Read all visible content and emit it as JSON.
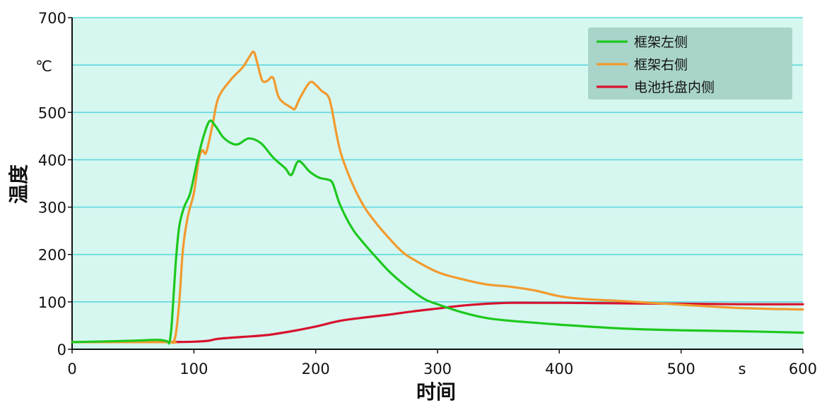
{
  "chart_data": {
    "type": "line",
    "xlabel": "时间",
    "ylabel": "温度",
    "x_unit": "s",
    "y_unit": "℃",
    "xlim": [
      0,
      600
    ],
    "ylim": [
      0,
      700
    ],
    "x_ticks": [
      0,
      100,
      200,
      300,
      400,
      500,
      600
    ],
    "y_ticks": [
      0,
      100,
      200,
      300,
      400,
      500,
      700
    ],
    "grid": true,
    "background": "#d5f7f0",
    "grid_color": "#5fd8dc",
    "legend_position": "top-right",
    "series": [
      {
        "name": "框架左侧",
        "color": "#1ec81e",
        "points": [
          [
            0,
            15
          ],
          [
            50,
            18
          ],
          [
            70,
            20
          ],
          [
            78,
            17
          ],
          [
            80,
            15
          ],
          [
            82,
            60
          ],
          [
            85,
            180
          ],
          [
            88,
            260
          ],
          [
            92,
            300
          ],
          [
            97,
            330
          ],
          [
            103,
            400
          ],
          [
            108,
            450
          ],
          [
            113,
            482
          ],
          [
            118,
            470
          ],
          [
            125,
            445
          ],
          [
            135,
            432
          ],
          [
            145,
            445
          ],
          [
            155,
            435
          ],
          [
            165,
            405
          ],
          [
            175,
            382
          ],
          [
            180,
            368
          ],
          [
            186,
            397
          ],
          [
            195,
            375
          ],
          [
            203,
            362
          ],
          [
            210,
            358
          ],
          [
            214,
            350
          ],
          [
            220,
            305
          ],
          [
            230,
            255
          ],
          [
            240,
            222
          ],
          [
            250,
            193
          ],
          [
            260,
            165
          ],
          [
            270,
            142
          ],
          [
            280,
            122
          ],
          [
            290,
            105
          ],
          [
            300,
            95
          ],
          [
            320,
            78
          ],
          [
            340,
            66
          ],
          [
            360,
            60
          ],
          [
            380,
            56
          ],
          [
            400,
            52
          ],
          [
            450,
            44
          ],
          [
            500,
            40
          ],
          [
            550,
            38
          ],
          [
            600,
            35
          ]
        ]
      },
      {
        "name": "框架右侧",
        "color": "#f29a2e",
        "points": [
          [
            0,
            15
          ],
          [
            78,
            15
          ],
          [
            82,
            15
          ],
          [
            85,
            30
          ],
          [
            88,
            100
          ],
          [
            91,
            210
          ],
          [
            95,
            280
          ],
          [
            100,
            330
          ],
          [
            104,
            400
          ],
          [
            107,
            420
          ],
          [
            110,
            415
          ],
          [
            115,
            470
          ],
          [
            120,
            530
          ],
          [
            130,
            568
          ],
          [
            140,
            595
          ],
          [
            145,
            615
          ],
          [
            149,
            628
          ],
          [
            152,
            605
          ],
          [
            156,
            568
          ],
          [
            160,
            566
          ],
          [
            165,
            573
          ],
          [
            170,
            530
          ],
          [
            180,
            510
          ],
          [
            183,
            508
          ],
          [
            187,
            530
          ],
          [
            195,
            563
          ],
          [
            200,
            558
          ],
          [
            205,
            545
          ],
          [
            210,
            535
          ],
          [
            213,
            510
          ],
          [
            220,
            420
          ],
          [
            230,
            350
          ],
          [
            240,
            300
          ],
          [
            250,
            265
          ],
          [
            260,
            235
          ],
          [
            270,
            208
          ],
          [
            280,
            190
          ],
          [
            300,
            163
          ],
          [
            320,
            148
          ],
          [
            340,
            137
          ],
          [
            360,
            132
          ],
          [
            380,
            124
          ],
          [
            400,
            112
          ],
          [
            420,
            106
          ],
          [
            450,
            102
          ],
          [
            500,
            94
          ],
          [
            550,
            87
          ],
          [
            600,
            84
          ]
        ]
      },
      {
        "name": "电池托盘内侧",
        "color": "#d8122e",
        "points": [
          [
            0,
            15
          ],
          [
            70,
            15
          ],
          [
            100,
            16
          ],
          [
            112,
            18
          ],
          [
            120,
            22
          ],
          [
            140,
            26
          ],
          [
            160,
            30
          ],
          [
            180,
            38
          ],
          [
            200,
            48
          ],
          [
            220,
            60
          ],
          [
            240,
            67
          ],
          [
            260,
            73
          ],
          [
            280,
            80
          ],
          [
            300,
            86
          ],
          [
            320,
            92
          ],
          [
            340,
            96
          ],
          [
            360,
            98
          ],
          [
            380,
            98
          ],
          [
            400,
            98
          ],
          [
            450,
            97
          ],
          [
            500,
            96
          ],
          [
            550,
            95
          ],
          [
            600,
            95
          ]
        ]
      }
    ]
  }
}
